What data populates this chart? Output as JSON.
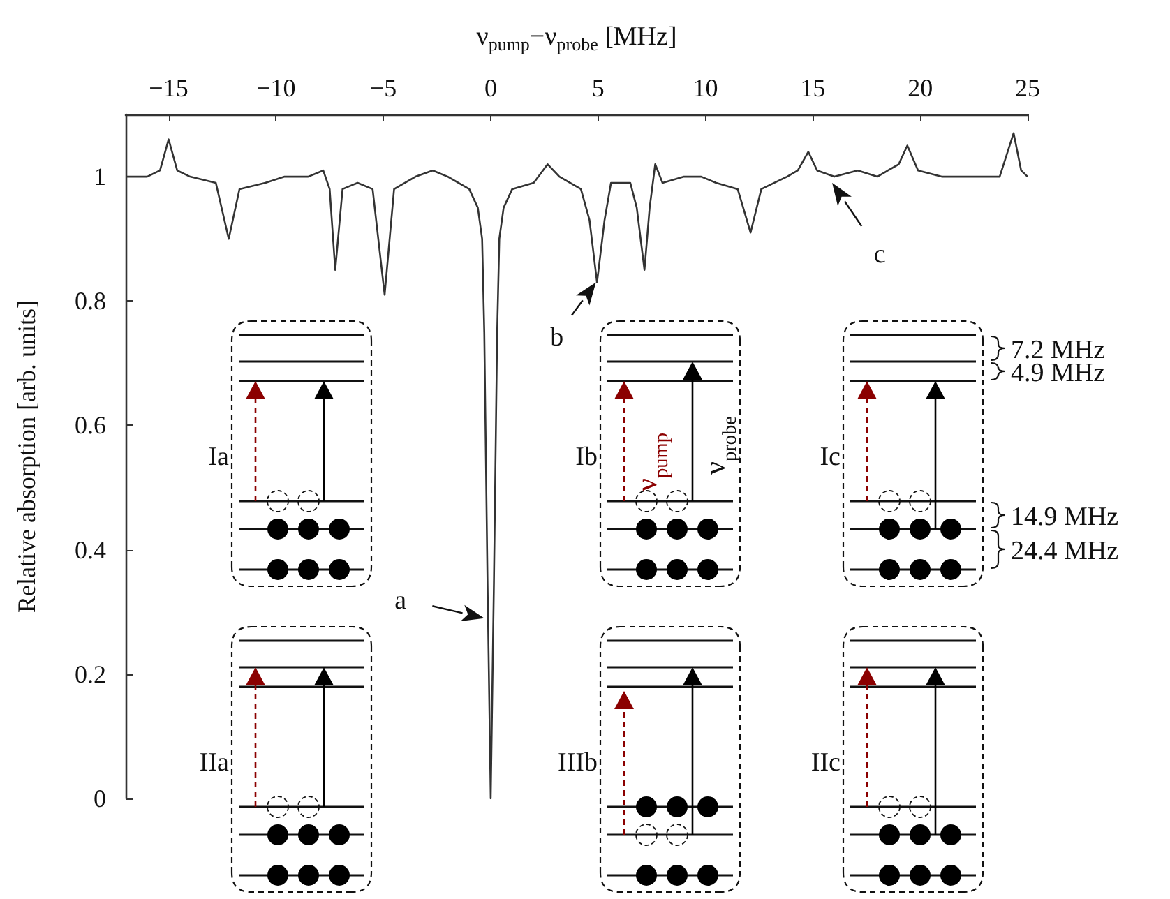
{
  "chart_data": {
    "type": "line",
    "xlabel": "ν$_{pump}$−ν$_{probe}$ [MHz]",
    "ylabel": "Relative absorption [arb. units]",
    "xlim": [
      -17,
      25
    ],
    "xticks": [
      -15,
      -10,
      -5,
      0,
      5,
      10,
      15,
      20,
      25
    ],
    "ylim": [
      0,
      1.1
    ],
    "yticks": [
      0,
      0.2,
      0.4,
      0.6,
      0.8,
      1
    ],
    "grid": false,
    "series": [
      {
        "color": "#333333",
        "x": [
          -17,
          -16,
          -15.4,
          -15,
          -14.6,
          -14,
          -12.8,
          -12.2,
          -11.7,
          -10.5,
          -9.6,
          -8.5,
          -7.8,
          -7.5,
          -7.24,
          -6.9,
          -6.2,
          -5.5,
          -4.94,
          -4.5,
          -3.5,
          -2.7,
          -2,
          -1,
          -0.6,
          -0.4,
          -0.3,
          -0.15,
          0,
          0.15,
          0.3,
          0.4,
          0.6,
          1,
          2,
          2.65,
          3.2,
          4.2,
          4.6,
          4.95,
          5.3,
          5.6,
          6.5,
          6.8,
          7.16,
          7.4,
          7.66,
          8,
          9,
          9.8,
          10.5,
          11.5,
          12.1,
          12.6,
          13.8,
          14.3,
          14.79,
          15.2,
          16,
          17.09,
          18,
          19,
          19.4,
          19.9,
          21,
          22.5,
          23.7,
          24.35,
          24.7,
          25
        ],
        "values": [
          1.0,
          1.0,
          1.01,
          1.06,
          1.01,
          1.0,
          0.99,
          0.9,
          0.98,
          0.99,
          1.0,
          1.0,
          1.01,
          0.98,
          0.85,
          0.98,
          0.99,
          0.98,
          0.81,
          0.98,
          1.0,
          1.01,
          1.0,
          0.98,
          0.95,
          0.9,
          0.75,
          0.35,
          0.0,
          0.35,
          0.75,
          0.9,
          0.95,
          0.98,
          0.99,
          1.02,
          1.0,
          0.98,
          0.93,
          0.83,
          0.93,
          0.99,
          0.99,
          0.95,
          0.85,
          0.95,
          1.02,
          0.99,
          1.0,
          1.0,
          0.99,
          0.98,
          0.91,
          0.98,
          1.0,
          1.01,
          1.04,
          1.01,
          1.0,
          1.01,
          1.0,
          1.02,
          1.05,
          1.01,
          1.0,
          1.0,
          1.0,
          1.07,
          1.01,
          1.0
        ]
      }
    ],
    "annotations": [
      {
        "text": "a",
        "x": -0.3,
        "y": 0.29
      },
      {
        "text": "b",
        "x": 4.9,
        "y": 0.83
      },
      {
        "text": "c",
        "x": 15.9,
        "y": 0.99
      },
      "Ia",
      "Ib",
      "Ic",
      "IIa",
      "IIIb",
      "IIc",
      "ν$_{pump}$",
      "ν$_{probe}$",
      "7.2 MHz",
      "4.9 MHz",
      "14.9 MHz",
      "24.4 MHz"
    ]
  }
}
